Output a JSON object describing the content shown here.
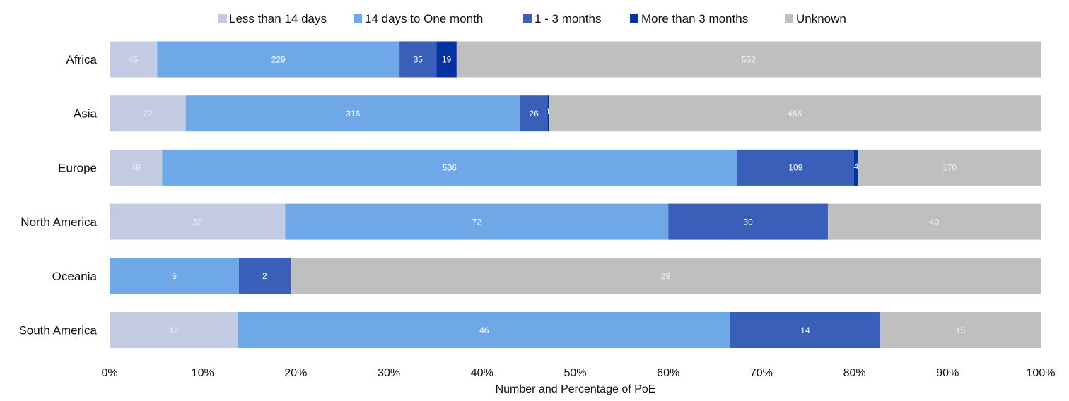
{
  "chart_data": {
    "type": "bar",
    "orientation": "horizontal",
    "stacking": "percent",
    "title": "",
    "xlabel": "Number and Percentage of PoE",
    "ylabel": "",
    "xlim": [
      0,
      100
    ],
    "x_ticks": [
      "0%",
      "10%",
      "20%",
      "30%",
      "40%",
      "50%",
      "60%",
      "70%",
      "80%",
      "90%",
      "100%"
    ],
    "grid": false,
    "legend_position": "top",
    "categories": [
      "Africa",
      "Asia",
      "Europe",
      "North America",
      "Oceania",
      "South America"
    ],
    "series": [
      {
        "name": "Less than 14 days",
        "color": "#c3cbe3",
        "label_color": "#eef0f7",
        "values": [
          45,
          72,
          49,
          33,
          0,
          12
        ]
      },
      {
        "name": "14 days to One month",
        "color": "#6ea8e6",
        "label_color": "#ffffff",
        "values": [
          229,
          316,
          536,
          72,
          5,
          46
        ]
      },
      {
        "name": "1 - 3 months",
        "color": "#3a5fb8",
        "label_color": "#ffffff",
        "values": [
          35,
          26,
          109,
          30,
          2,
          14
        ]
      },
      {
        "name": "More than 3 months",
        "color": "#0433a0",
        "label_color": "#ffffff",
        "values": [
          19,
          1,
          4,
          0,
          0,
          0
        ]
      },
      {
        "name": "Unknown",
        "color": "#bfbfbf",
        "label_color": "#f4f4f4",
        "values": [
          552,
          465,
          170,
          40,
          29,
          15
        ]
      }
    ]
  }
}
